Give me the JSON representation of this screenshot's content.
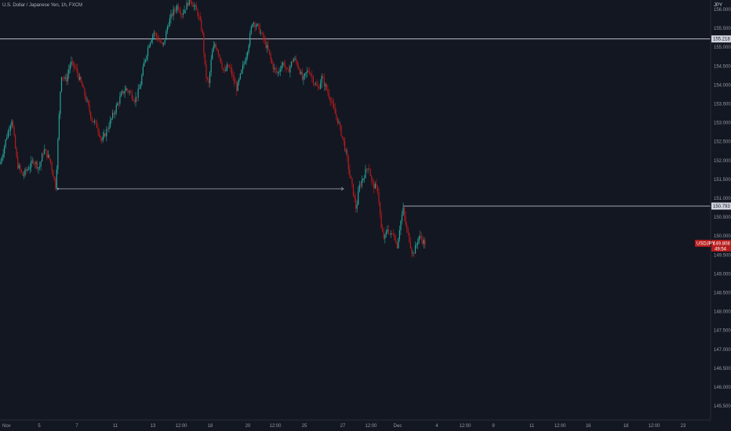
{
  "header": {
    "symbol_title": "U.S. Dollar / Japanese Yen, 1h, FXCM",
    "currency": "JPY"
  },
  "price_tags": {
    "resistance": "155.218",
    "support": "150.793",
    "symbol": "USDJPY",
    "last_price": "149.808",
    "countdown": "49:54"
  },
  "colors": {
    "background": "#131722",
    "up": "#26a69a",
    "down": "#b71c1c",
    "level_line": "#d1d4dc",
    "last_tag": "#b71c1c"
  },
  "chart_data": {
    "type": "candlestick",
    "title": "U.S. Dollar / Japanese Yen, 1h, FXCM",
    "ylim": [
      145.2,
      156.4
    ],
    "y_ticks": [
      "145.500",
      "146.000",
      "146.500",
      "147.000",
      "147.500",
      "148.000",
      "148.500",
      "149.000",
      "149.500",
      "150.000",
      "150.500",
      "151.000",
      "151.500",
      "152.000",
      "152.500",
      "153.000",
      "153.500",
      "154.000",
      "154.500",
      "155.000",
      "155.500",
      "156.000"
    ],
    "x_ticks": [
      {
        "label": "Nov",
        "x": 3
      },
      {
        "label": "5",
        "x": 50
      },
      {
        "label": "7",
        "x": 98
      },
      {
        "label": "11",
        "x": 147
      },
      {
        "label": "13",
        "x": 195
      },
      {
        "label": "12:00",
        "x": 231
      },
      {
        "label": "18",
        "x": 268
      },
      {
        "label": "20",
        "x": 316
      },
      {
        "label": "12:00",
        "x": 351
      },
      {
        "label": "25",
        "x": 388
      },
      {
        "label": "27",
        "x": 437
      },
      {
        "label": "12:00",
        "x": 473
      },
      {
        "label": "Dec",
        "x": 507
      },
      {
        "label": "4",
        "x": 557
      },
      {
        "label": "12:00",
        "x": 593
      },
      {
        "label": "9",
        "x": 629
      },
      {
        "label": "11",
        "x": 678
      },
      {
        "label": "12:00",
        "x": 714
      },
      {
        "label": "16",
        "x": 750
      },
      {
        "label": "18",
        "x": 798
      },
      {
        "label": "12:00",
        "x": 834
      },
      {
        "label": "23",
        "x": 871
      }
    ],
    "path": [
      [
        0,
        151.9
      ],
      [
        8,
        152.6
      ],
      [
        15,
        153.1
      ],
      [
        22,
        151.9
      ],
      [
        29,
        151.6
      ],
      [
        36,
        151.8
      ],
      [
        43,
        152.0
      ],
      [
        50,
        151.8
      ],
      [
        56,
        152.3
      ],
      [
        64,
        152.0
      ],
      [
        71,
        151.3
      ],
      [
        78,
        154.3
      ],
      [
        84,
        154.1
      ],
      [
        90,
        154.6
      ],
      [
        97,
        154.4
      ],
      [
        104,
        154.0
      ],
      [
        110,
        153.6
      ],
      [
        117,
        153.1
      ],
      [
        124,
        152.9
      ],
      [
        130,
        152.5
      ],
      [
        136,
        152.8
      ],
      [
        142,
        153.1
      ],
      [
        148,
        153.4
      ],
      [
        154,
        153.7
      ],
      [
        160,
        153.9
      ],
      [
        166,
        153.8
      ],
      [
        172,
        153.6
      ],
      [
        178,
        153.9
      ],
      [
        184,
        154.6
      ],
      [
        190,
        155.1
      ],
      [
        196,
        155.4
      ],
      [
        202,
        155.2
      ],
      [
        208,
        155.0
      ],
      [
        214,
        155.6
      ],
      [
        220,
        155.9
      ],
      [
        226,
        156.1
      ],
      [
        232,
        155.9
      ],
      [
        238,
        156.1
      ],
      [
        242,
        156.3
      ],
      [
        247,
        156.1
      ],
      [
        252,
        155.9
      ],
      [
        258,
        155.4
      ],
      [
        262,
        154.3
      ],
      [
        266,
        154.0
      ],
      [
        270,
        154.8
      ],
      [
        274,
        155.1
      ],
      [
        278,
        154.9
      ],
      [
        282,
        154.6
      ],
      [
        286,
        154.3
      ],
      [
        290,
        154.5
      ],
      [
        294,
        154.4
      ],
      [
        298,
        154.1
      ],
      [
        302,
        153.9
      ],
      [
        306,
        154.2
      ],
      [
        310,
        154.5
      ],
      [
        314,
        154.8
      ],
      [
        318,
        155.2
      ],
      [
        322,
        155.7
      ],
      [
        326,
        155.6
      ],
      [
        330,
        155.5
      ],
      [
        334,
        155.3
      ],
      [
        338,
        155.1
      ],
      [
        342,
        154.9
      ],
      [
        346,
        154.6
      ],
      [
        350,
        154.4
      ],
      [
        354,
        154.3
      ],
      [
        358,
        154.5
      ],
      [
        362,
        154.6
      ],
      [
        366,
        154.3
      ],
      [
        370,
        154.5
      ],
      [
        374,
        154.7
      ],
      [
        378,
        154.6
      ],
      [
        382,
        154.4
      ],
      [
        386,
        154.1
      ],
      [
        390,
        154.3
      ],
      [
        394,
        154.4
      ],
      [
        398,
        154.2
      ],
      [
        402,
        154.0
      ],
      [
        406,
        153.9
      ],
      [
        410,
        154.2
      ],
      [
        414,
        154.0
      ],
      [
        418,
        153.8
      ],
      [
        422,
        153.6
      ],
      [
        426,
        153.3
      ],
      [
        430,
        153.1
      ],
      [
        434,
        152.8
      ],
      [
        438,
        152.5
      ],
      [
        442,
        152.1
      ],
      [
        446,
        151.6
      ],
      [
        450,
        151.2
      ],
      [
        454,
        150.7
      ],
      [
        458,
        151.3
      ],
      [
        462,
        151.5
      ],
      [
        466,
        151.7
      ],
      [
        470,
        151.9
      ],
      [
        474,
        151.4
      ],
      [
        478,
        151.3
      ],
      [
        482,
        151.2
      ],
      [
        486,
        150.2
      ],
      [
        490,
        149.9
      ],
      [
        494,
        150.2
      ],
      [
        498,
        150.0
      ],
      [
        502,
        150.1
      ],
      [
        506,
        149.7
      ],
      [
        510,
        150.3
      ],
      [
        514,
        150.7
      ],
      [
        518,
        150.2
      ],
      [
        522,
        149.9
      ],
      [
        526,
        149.5
      ],
      [
        530,
        149.7
      ],
      [
        534,
        150.0
      ],
      [
        538,
        149.9
      ],
      [
        542,
        149.8
      ]
    ],
    "horizontal_levels": [
      {
        "label": "155.218",
        "value": 155.218,
        "x_start": 0
      },
      {
        "label": "150.793",
        "value": 150.793,
        "x_start": 514
      }
    ],
    "trendline": {
      "x1": 74,
      "y1": 151.25,
      "x2": 438,
      "y2": 151.25
    },
    "last_price": 149.808
  }
}
